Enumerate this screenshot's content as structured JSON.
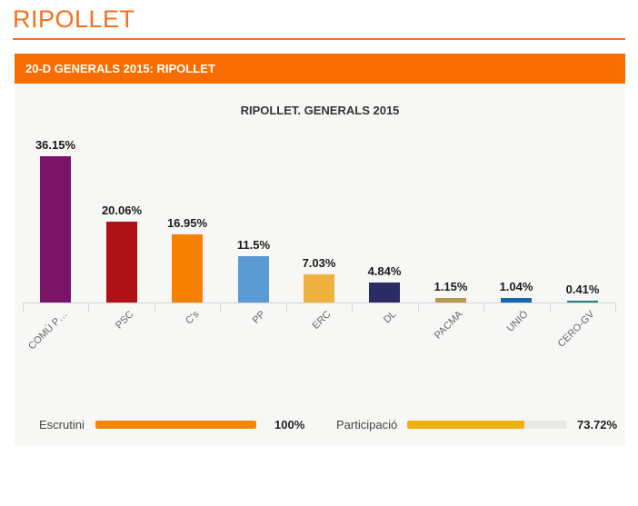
{
  "page": {
    "title": "RIPOLLET"
  },
  "banner": {
    "title": "20-D GENERALS 2015: RIPOLLET"
  },
  "chart_data": {
    "type": "bar",
    "title": "RIPOLLET. GENERALS 2015",
    "categories": [
      "COMÚ P…",
      "PSC",
      "C's",
      "PP",
      "ERC",
      "DL",
      "PACMA",
      "UNIÓ",
      "CERO-GV"
    ],
    "values": [
      36.15,
      20.06,
      16.95,
      11.5,
      7.03,
      4.84,
      1.15,
      1.04,
      0.41
    ],
    "value_labels": [
      "36.15%",
      "20.06%",
      "16.95%",
      "11.5%",
      "7.03%",
      "4.84%",
      "1.15%",
      "1.04%",
      "0.41%"
    ],
    "bar_colors": [
      "#7B1369",
      "#B01116",
      "#F88000",
      "#5B9BD5",
      "#F0B23E",
      "#2B2B66",
      "#B49A4D",
      "#1668AC",
      "#2E7F80"
    ],
    "xlabel": "",
    "ylabel": "",
    "ylim": [
      0,
      38
    ],
    "grid": false,
    "legend": false
  },
  "progress": {
    "escrutini": {
      "label": "Escrutini",
      "value": 100,
      "value_label": "100%",
      "color": "#F28705"
    },
    "participacio": {
      "label": "Participació",
      "value": 73.72,
      "value_label": "73.72%",
      "color": "#EDB111"
    }
  },
  "theme": {
    "accent_orange": "#F96D00",
    "heading_orange": "#F4711D",
    "panel_gray": "#F7F7F5"
  }
}
